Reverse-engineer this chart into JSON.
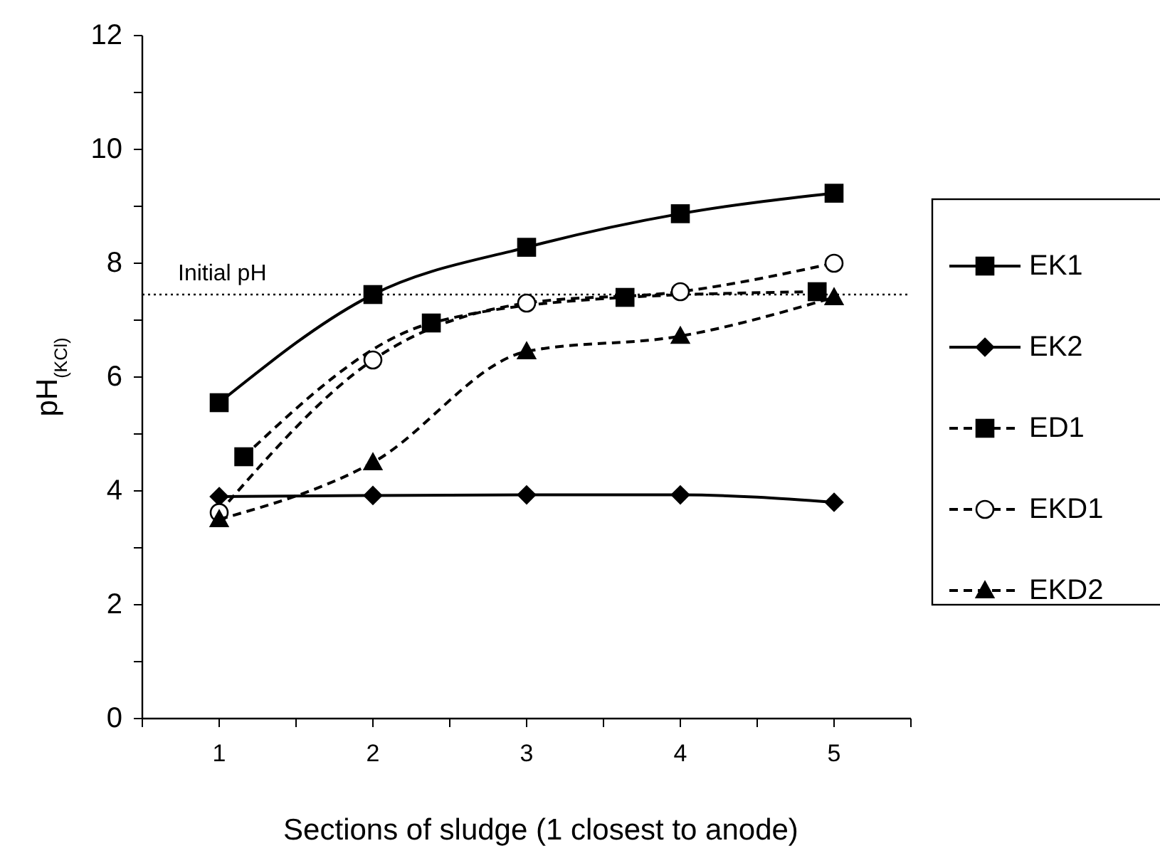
{
  "chart_data": {
    "type": "line",
    "xlabel": "Sections of sludge (1 closest to anode)",
    "ylabel": "pH$_{(KCl)}$",
    "xlim": [
      0.5,
      5.5
    ],
    "xticks": [
      {
        "value": 0.5,
        "label": null
      },
      1,
      {
        "value": 1.5,
        "label": null
      },
      2,
      {
        "value": 2.5,
        "label": null
      },
      3,
      {
        "value": 3.5,
        "label": null
      },
      4,
      {
        "value": 4.5,
        "label": null
      },
      5,
      {
        "value": 5.5,
        "label": null
      }
    ],
    "ylim": [
      0,
      12
    ],
    "yticks": [
      0,
      {
        "value": 1,
        "label": null
      },
      2,
      {
        "value": 3,
        "label": null
      },
      4,
      {
        "value": 5,
        "label": null
      },
      6,
      {
        "value": 7,
        "label": null
      },
      8,
      {
        "value": 9,
        "label": null
      },
      10,
      {
        "value": 11,
        "label": null
      },
      12
    ],
    "grid": false,
    "legend": "right",
    "ref_lines": [
      {
        "axis": "y",
        "value": 7.45,
        "label": "Initial pH",
        "line_style": "dotted",
        "color": "#000000"
      }
    ],
    "series": [
      {
        "name": "EK1",
        "color": "#000000",
        "x": [
          1,
          2,
          3,
          4,
          5
        ],
        "values": [
          5.55,
          7.45,
          8.28,
          8.87,
          9.23
        ],
        "marker": "square",
        "line_style": "solid"
      },
      {
        "name": "EK2",
        "color": "#000000",
        "x": [
          1,
          2,
          3,
          4,
          5
        ],
        "values": [
          3.9,
          3.92,
          3.93,
          3.93,
          3.8
        ],
        "marker": "diamond",
        "line_style": "solid"
      },
      {
        "name": "ED1",
        "color": "#000000",
        "x": [
          1.16,
          2.38,
          3.64,
          4.89
        ],
        "values": [
          4.6,
          6.95,
          7.4,
          7.5
        ],
        "marker": "square",
        "line_style": "dashed"
      },
      {
        "name": "EKD1",
        "color": "#000000",
        "x": [
          1,
          2,
          3,
          4,
          5
        ],
        "values": [
          3.62,
          6.3,
          7.3,
          7.5,
          8.0
        ],
        "marker": "circle",
        "line_style": "dashed"
      },
      {
        "name": "EKD2",
        "color": "#000000",
        "x": [
          1,
          2,
          3,
          4,
          5
        ],
        "values": [
          3.5,
          4.5,
          6.45,
          6.72,
          7.4
        ],
        "marker": "triangle",
        "line_style": "dashed"
      }
    ]
  }
}
